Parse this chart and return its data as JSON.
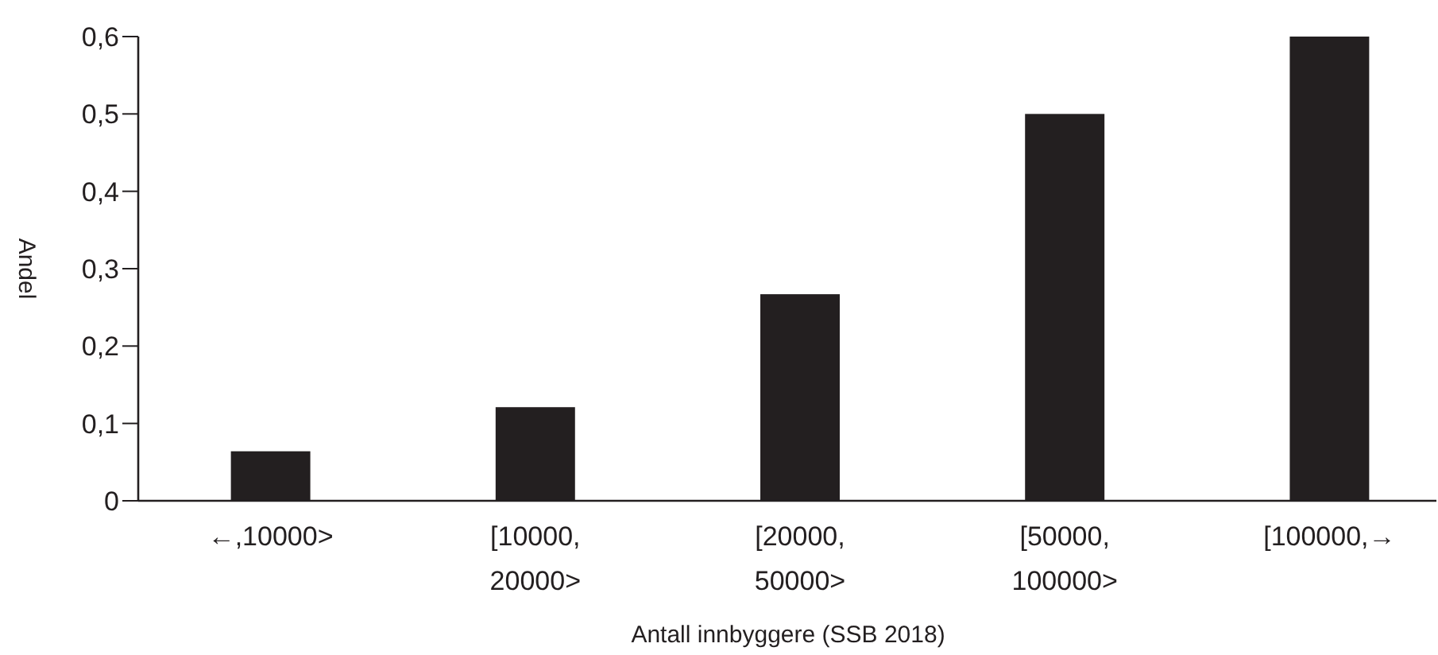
{
  "chart_data": {
    "type": "bar",
    "xlabel": "Antall innbyggere (SSB 2018)",
    "ylabel": "Andel",
    "categories": [
      "←,10000>",
      "[10000,\n20000>",
      "[20000,\n50000>",
      "[50000,\n100000>",
      "[100000,→"
    ],
    "values": [
      0.064,
      0.121,
      0.267,
      0.5,
      0.6
    ],
    "color": "#231f20",
    "ylim": [
      0,
      0.6
    ],
    "yticks": [
      0,
      {
        "value": 0.1,
        "label": "0,1"
      },
      {
        "value": 0.2,
        "label": "0,2"
      },
      {
        "value": 0.3,
        "label": "0,3"
      },
      {
        "value": 0.4,
        "label": "0,4"
      },
      {
        "value": 0.5,
        "label": "0,5"
      },
      {
        "value": 0.6,
        "label": "0,6"
      }
    ]
  }
}
